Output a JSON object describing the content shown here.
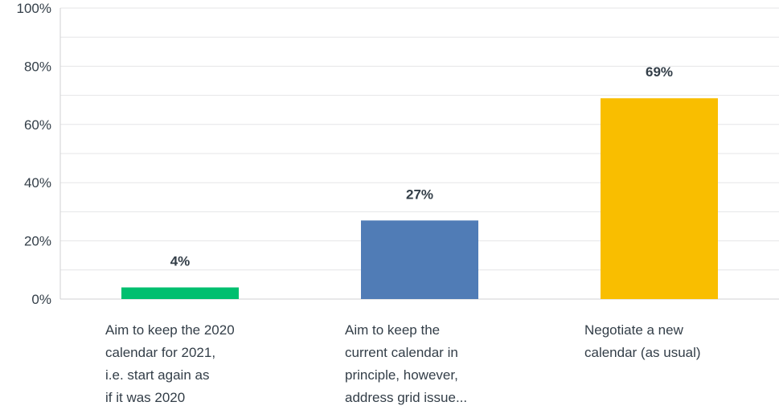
{
  "chart_data": {
    "type": "bar",
    "categories": [
      [
        "Aim to keep the 2020",
        "calendar for 2021,",
        "i.e. start again as",
        "if it was 2020"
      ],
      [
        "Aim to keep the",
        "current calendar in",
        "principle, however,",
        "address grid issue..."
      ],
      [
        "Negotiate a new",
        "calendar (as usual)"
      ]
    ],
    "values": [
      4,
      27,
      69
    ],
    "data_labels": [
      "4%",
      "27%",
      "69%"
    ],
    "colors": [
      "#00bf6f",
      "#507cb6",
      "#f9be00"
    ],
    "ylim": [
      0,
      100
    ],
    "y_ticks": [
      0,
      20,
      40,
      60,
      80,
      100
    ],
    "y_tick_labels": [
      "0%",
      "20%",
      "40%",
      "60%",
      "80%",
      "100%"
    ],
    "grid": true,
    "gridline_step": 10,
    "title": "",
    "xlabel": "",
    "ylabel": ""
  }
}
